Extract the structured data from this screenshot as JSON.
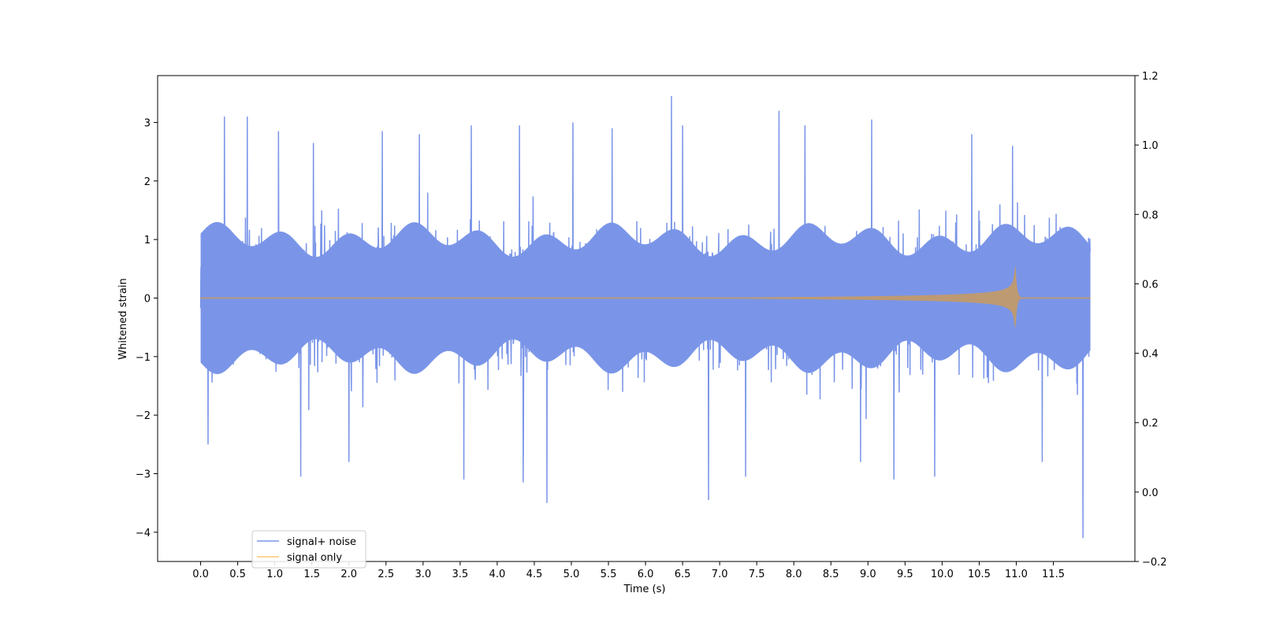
{
  "chart_data": {
    "type": "line",
    "xlabel": "Time (s)",
    "ylabel": "Whitened strain",
    "xlim": [
      -0.58,
      12.6
    ],
    "ylim": [
      -4.5,
      3.8
    ],
    "y2lim": [
      -0.2,
      1.2
    ],
    "x_ticks": [
      0.0,
      0.5,
      1.0,
      1.5,
      2.0,
      2.5,
      3.0,
      3.5,
      4.0,
      4.5,
      5.0,
      5.5,
      6.0,
      6.5,
      7.0,
      7.5,
      8.0,
      8.5,
      9.0,
      9.5,
      10.0,
      10.5,
      11.0,
      11.5
    ],
    "x_tick_labels": [
      "0.0",
      "0.5",
      "1.0",
      "1.5",
      "2.0",
      "2.5",
      "3.0",
      "3.5",
      "4.0",
      "4.5",
      "5.0",
      "5.5",
      "6.0",
      "6.5",
      "7.0",
      "7.5",
      "8.0",
      "8.5",
      "9.0",
      "9.5",
      "10.0",
      "10.5",
      "11.0",
      "11.5"
    ],
    "y_ticks": [
      -4,
      -3,
      -2,
      -1,
      0,
      1,
      2,
      3
    ],
    "y_tick_labels": [
      "−4",
      "−3",
      "−2",
      "−1",
      "0",
      "1",
      "2",
      "3"
    ],
    "y2_ticks": [
      -0.2,
      0.0,
      0.2,
      0.4,
      0.6,
      0.8,
      1.0,
      1.2
    ],
    "y2_tick_labels": [
      "−0.2",
      "0.0",
      "0.2",
      "0.4",
      "0.6",
      "0.8",
      "1.0",
      "1.2"
    ],
    "grid": false,
    "legend_position": "lower-left",
    "series": [
      {
        "name": "signal+ noise",
        "color": "#7a95e8",
        "sample_rate": 240,
        "duration": 12.0,
        "noise_sigma": 0.55,
        "peaks": [
          {
            "x": 0.1,
            "y": -2.5
          },
          {
            "x": 0.32,
            "y": 3.1
          },
          {
            "x": 0.63,
            "y": 3.1
          },
          {
            "x": 1.05,
            "y": 2.85
          },
          {
            "x": 1.35,
            "y": -3.05
          },
          {
            "x": 1.52,
            "y": 2.65
          },
          {
            "x": 2.0,
            "y": -2.8
          },
          {
            "x": 2.45,
            "y": 2.85
          },
          {
            "x": 2.95,
            "y": 2.8
          },
          {
            "x": 3.55,
            "y": -3.1
          },
          {
            "x": 3.65,
            "y": 2.95
          },
          {
            "x": 4.3,
            "y": 2.95
          },
          {
            "x": 4.35,
            "y": -3.15
          },
          {
            "x": 4.67,
            "y": -3.5
          },
          {
            "x": 5.02,
            "y": 3.0
          },
          {
            "x": 5.55,
            "y": 2.9
          },
          {
            "x": 6.35,
            "y": 3.45
          },
          {
            "x": 6.5,
            "y": 2.95
          },
          {
            "x": 6.85,
            "y": -3.45
          },
          {
            "x": 7.35,
            "y": -3.05
          },
          {
            "x": 7.8,
            "y": 3.2
          },
          {
            "x": 8.15,
            "y": 2.95
          },
          {
            "x": 8.9,
            "y": -2.8
          },
          {
            "x": 9.05,
            "y": 3.05
          },
          {
            "x": 9.35,
            "y": -3.1
          },
          {
            "x": 9.9,
            "y": -3.05
          },
          {
            "x": 10.4,
            "y": 2.8
          },
          {
            "x": 10.95,
            "y": 2.6
          },
          {
            "x": 11.35,
            "y": -2.8
          },
          {
            "x": 11.9,
            "y": -4.1
          }
        ]
      },
      {
        "name": "signal only",
        "color": "#ffc870",
        "overlap_color": "#bd9a72",
        "chirp_start": 6.5,
        "merger_time": 10.98,
        "peak_amplitude": 0.93,
        "min_amplitude": -0.82,
        "pre_chirp_amplitude": 0.01
      }
    ]
  }
}
